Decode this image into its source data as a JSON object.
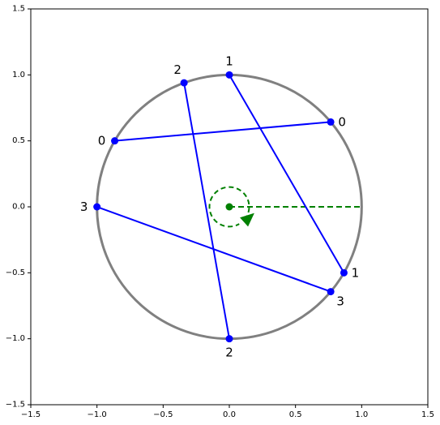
{
  "chart_data": {
    "type": "diagram",
    "xlim": [
      -1.5,
      1.5
    ],
    "ylim": [
      -1.5,
      1.5
    ],
    "grid": false,
    "x_ticks": [
      {
        "value": -1.5,
        "label": "−1.5"
      },
      {
        "value": -1.0,
        "label": "−1.0"
      },
      {
        "value": -0.5,
        "label": "−0.5"
      },
      {
        "value": 0.0,
        "label": "0.0"
      },
      {
        "value": 0.5,
        "label": "0.5"
      },
      {
        "value": 1.0,
        "label": "1.0"
      },
      {
        "value": 1.5,
        "label": "1.5"
      }
    ],
    "y_ticks": [
      {
        "value": -1.5,
        "label": "−1.5"
      },
      {
        "value": -1.0,
        "label": "−1.0"
      },
      {
        "value": -0.5,
        "label": "−0.5"
      },
      {
        "value": 0.0,
        "label": "0.0"
      },
      {
        "value": 0.5,
        "label": "0.5"
      },
      {
        "value": 1.0,
        "label": "1.0"
      },
      {
        "value": 1.5,
        "label": "1.5"
      }
    ],
    "circle": {
      "cx": 0,
      "cy": 0,
      "r": 1,
      "color": "#808080"
    },
    "chord_color": "#0000ff",
    "point_color": "#0000ff",
    "points": [
      {
        "label": "0",
        "x": -0.866,
        "y": 0.5,
        "label_side": "left"
      },
      {
        "label": "0",
        "x": 0.766,
        "y": 0.643,
        "label_side": "right"
      },
      {
        "label": "2",
        "x": -0.342,
        "y": 0.94,
        "label_side": "upper-left"
      },
      {
        "label": "2",
        "x": 0.0,
        "y": -1.0,
        "label_side": "below"
      },
      {
        "label": "1",
        "x": 0.0,
        "y": 1.0,
        "label_side": "above"
      },
      {
        "label": "1",
        "x": 0.866,
        "y": -0.5,
        "label_side": "right"
      },
      {
        "label": "3",
        "x": -1.0,
        "y": 0.0,
        "label_side": "left"
      },
      {
        "label": "3",
        "x": 0.766,
        "y": -0.643,
        "label_side": "lower-right"
      }
    ],
    "chords": [
      {
        "label": "0",
        "from": [
          -0.866,
          0.5
        ],
        "to": [
          0.766,
          0.643
        ]
      },
      {
        "label": "2",
        "from": [
          -0.342,
          0.94
        ],
        "to": [
          0.0,
          -1.0
        ]
      },
      {
        "label": "1",
        "from": [
          0.0,
          1.0
        ],
        "to": [
          0.866,
          -0.5
        ]
      },
      {
        "label": "3",
        "from": [
          -1.0,
          0.0
        ],
        "to": [
          0.766,
          -0.643
        ]
      }
    ],
    "center_marker": {
      "x": 0,
      "y": 0,
      "color": "#008000"
    },
    "reference_line": {
      "from": [
        0,
        0
      ],
      "to": [
        1,
        0
      ],
      "color": "#008000",
      "style": "dashed"
    },
    "rotation_indicator": {
      "cx": 0,
      "cy": 0,
      "r": 0.15,
      "color": "#008000",
      "style": "dashed",
      "direction": "counterclockwise"
    }
  }
}
